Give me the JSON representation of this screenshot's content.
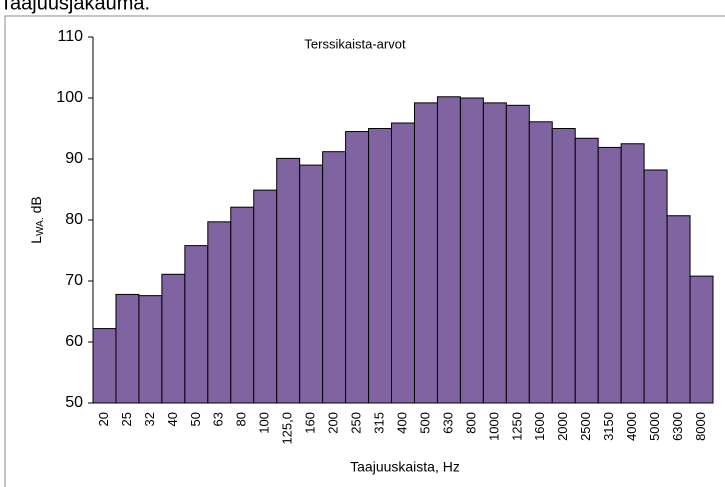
{
  "caption": "Taajuusjakauma.",
  "chart_data": {
    "type": "bar",
    "subtitle": "Terssikaista-arvot",
    "ylabel": {
      "main": "L",
      "subscript": "WA.",
      "unit": "dB"
    },
    "xlabel": "Taajuuskaista,  Hz",
    "categories": [
      "20",
      "25",
      "32",
      "40",
      "50",
      "63",
      "80",
      "100",
      "125,0",
      "160",
      "200",
      "250",
      "315",
      "400",
      "500",
      "630",
      "800",
      "1000",
      "1250",
      "1600",
      "2000",
      "2500",
      "3150",
      "4000",
      "5000",
      "6300",
      "8000"
    ],
    "values": [
      62.2,
      67.8,
      67.6,
      71.1,
      75.8,
      79.7,
      82.1,
      84.9,
      90.1,
      89.0,
      91.2,
      94.5,
      95.0,
      95.9,
      99.2,
      100.2,
      100.0,
      99.2,
      98.8,
      96.1,
      95.0,
      93.4,
      91.9,
      92.5,
      88.2,
      80.7,
      70.8
    ],
    "color": "#8064a2",
    "ylim": [
      50,
      110
    ],
    "yticks": [
      50,
      60,
      70,
      80,
      90,
      100,
      110
    ]
  }
}
